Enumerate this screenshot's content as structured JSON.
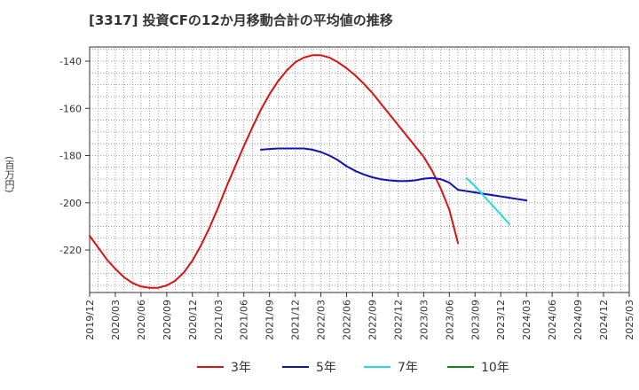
{
  "title": "[3317]  投資CFの12か月移動合計の平均値の推移",
  "chart_data": {
    "type": "line",
    "title": "[3317]  投資CFの12か月移動合計の平均値の推移",
    "ylabel": "(百万円)",
    "xlabel": "",
    "ylim": [
      -238,
      -134
    ],
    "yticks": [
      -140,
      -160,
      -180,
      -200,
      -220
    ],
    "x_ticks": [
      "2019/12",
      "2020/03",
      "2020/06",
      "2020/09",
      "2020/12",
      "2021/03",
      "2021/06",
      "2021/09",
      "2021/12",
      "2022/03",
      "2022/06",
      "2022/09",
      "2022/12",
      "2023/03",
      "2023/06",
      "2023/09",
      "2023/12",
      "2024/03",
      "2024/06",
      "2024/09",
      "2024/12",
      "2025/03"
    ],
    "grid": true,
    "legend_position": "bottom",
    "series": [
      {
        "name": "3年",
        "color": "#dd1111",
        "points": [
          [
            "2019/12",
            -214
          ],
          [
            "2020/01",
            -219
          ],
          [
            "2020/02",
            -224
          ],
          [
            "2020/03",
            -228
          ],
          [
            "2020/04",
            -231.5
          ],
          [
            "2020/05",
            -234
          ],
          [
            "2020/06",
            -235.5
          ],
          [
            "2020/07",
            -236
          ],
          [
            "2020/08",
            -236
          ],
          [
            "2020/09",
            -235
          ],
          [
            "2020/10",
            -233
          ],
          [
            "2020/11",
            -229.5
          ],
          [
            "2020/12",
            -224.5
          ],
          [
            "2021/01",
            -218
          ],
          [
            "2021/02",
            -210.5
          ],
          [
            "2021/03",
            -202
          ],
          [
            "2021/04",
            -193
          ],
          [
            "2021/05",
            -184.5
          ],
          [
            "2021/06",
            -176
          ],
          [
            "2021/07",
            -168
          ],
          [
            "2021/08",
            -160.5
          ],
          [
            "2021/09",
            -154
          ],
          [
            "2021/10",
            -148.5
          ],
          [
            "2021/11",
            -144
          ],
          [
            "2021/12",
            -140.5
          ],
          [
            "2022/01",
            -138.5
          ],
          [
            "2022/02",
            -137.5
          ],
          [
            "2022/03",
            -137.5
          ],
          [
            "2022/04",
            -138.5
          ],
          [
            "2022/05",
            -140.5
          ],
          [
            "2022/06",
            -143
          ],
          [
            "2022/07",
            -146
          ],
          [
            "2022/08",
            -149.5
          ],
          [
            "2022/09",
            -153.5
          ],
          [
            "2022/10",
            -158
          ],
          [
            "2022/11",
            -162.5
          ],
          [
            "2022/12",
            -167
          ],
          [
            "2023/01",
            -171.5
          ],
          [
            "2023/02",
            -176
          ],
          [
            "2023/03",
            -180.5
          ],
          [
            "2023/04",
            -186.5
          ],
          [
            "2023/05",
            -194
          ],
          [
            "2023/06",
            -203
          ],
          [
            "2023/07",
            -217
          ]
        ]
      },
      {
        "name": "5年",
        "color": "#1111bb",
        "points": [
          [
            "2021/08",
            -177.5
          ],
          [
            "2021/09",
            -177.2
          ],
          [
            "2021/10",
            -177
          ],
          [
            "2021/11",
            -177
          ],
          [
            "2021/12",
            -177
          ],
          [
            "2022/01",
            -177
          ],
          [
            "2022/02",
            -177.5
          ],
          [
            "2022/03",
            -178.5
          ],
          [
            "2022/04",
            -180
          ],
          [
            "2022/05",
            -182
          ],
          [
            "2022/06",
            -184.5
          ],
          [
            "2022/07",
            -186.5
          ],
          [
            "2022/08",
            -188
          ],
          [
            "2022/09",
            -189.2
          ],
          [
            "2022/10",
            -190
          ],
          [
            "2022/11",
            -190.5
          ],
          [
            "2022/12",
            -190.8
          ],
          [
            "2023/01",
            -190.8
          ],
          [
            "2023/02",
            -190.5
          ],
          [
            "2023/03",
            -189.8
          ],
          [
            "2023/04",
            -189.5
          ],
          [
            "2023/05",
            -190
          ],
          [
            "2023/06",
            -191.5
          ],
          [
            "2023/07",
            -194.5
          ],
          [
            "2024/03",
            -199
          ]
        ]
      },
      {
        "name": "7年",
        "color": "#22dddd",
        "points": [
          [
            "2023/08",
            -189.5
          ],
          [
            "2023/09",
            -193
          ],
          [
            "2023/10",
            -197
          ],
          [
            "2023/11",
            -201
          ],
          [
            "2023/12",
            -205
          ],
          [
            "2024/01",
            -209
          ]
        ]
      },
      {
        "name": "10年",
        "color": "#118811",
        "points": []
      }
    ]
  }
}
